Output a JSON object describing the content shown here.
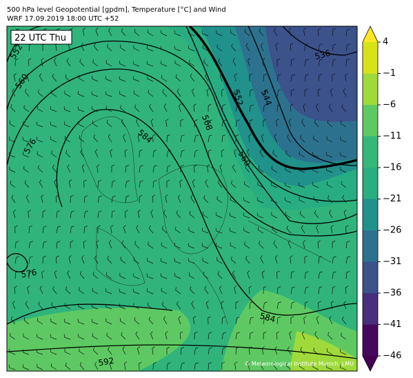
{
  "header": {
    "title": "500 hPa level Geopotential [gpdm], Temperature [°C] and Wind",
    "subtitle": "WRF 17.09.2019 18:00 UTC +52"
  },
  "panel": {
    "time_label": "22 UTC Thu",
    "attribution": "© Meteorological Institute Munich, LMU"
  },
  "contour_labels": [
    "552",
    "560",
    "576",
    "584",
    "568",
    "552",
    "544",
    "560",
    "536",
    "576",
    "584",
    "592"
  ],
  "colorbar": {
    "ticks": [
      {
        "value": 4,
        "label": "4"
      },
      {
        "value": -1,
        "label": "−1"
      },
      {
        "value": -6,
        "label": "−6"
      },
      {
        "value": -11,
        "label": "−11"
      },
      {
        "value": -16,
        "label": "−16"
      },
      {
        "value": -21,
        "label": "−21"
      },
      {
        "value": -26,
        "label": "−26"
      },
      {
        "value": -31,
        "label": "−31"
      },
      {
        "value": -36,
        "label": "−36"
      },
      {
        "value": -41,
        "label": "−41"
      },
      {
        "value": -46,
        "label": "−46"
      }
    ],
    "colors": [
      "#46085c",
      "#472f7d",
      "#3b528b",
      "#2c728e",
      "#21918c",
      "#28ae80",
      "#35b779",
      "#5ec962",
      "#9fda3a",
      "#d8e219"
    ],
    "extend_low": "#440154",
    "extend_high": "#fde725"
  }
}
